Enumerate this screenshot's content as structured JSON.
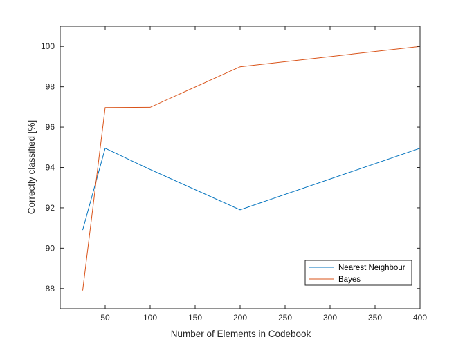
{
  "chart_data": {
    "type": "line",
    "title": "",
    "xlabel": "Number of Elements in Codebook",
    "ylabel": "Correctly classified [%]",
    "xlim": [
      0,
      400
    ],
    "ylim": [
      87,
      101
    ],
    "xticks": [
      50,
      100,
      150,
      200,
      250,
      300,
      350,
      400
    ],
    "yticks": [
      88,
      90,
      92,
      94,
      96,
      98,
      100
    ],
    "grid": false,
    "legend_position": "bottom-right",
    "series": [
      {
        "name": "Nearest Neighbour",
        "color": "#0072BD",
        "x": [
          25,
          50,
          100,
          200,
          400
        ],
        "y": [
          90.9,
          94.95,
          93.9,
          91.9,
          94.95
        ]
      },
      {
        "name": "Bayes",
        "color": "#D95319",
        "x": [
          25,
          50,
          100,
          200,
          400
        ],
        "y": [
          87.9,
          96.97,
          96.98,
          98.99,
          100
        ]
      }
    ]
  }
}
